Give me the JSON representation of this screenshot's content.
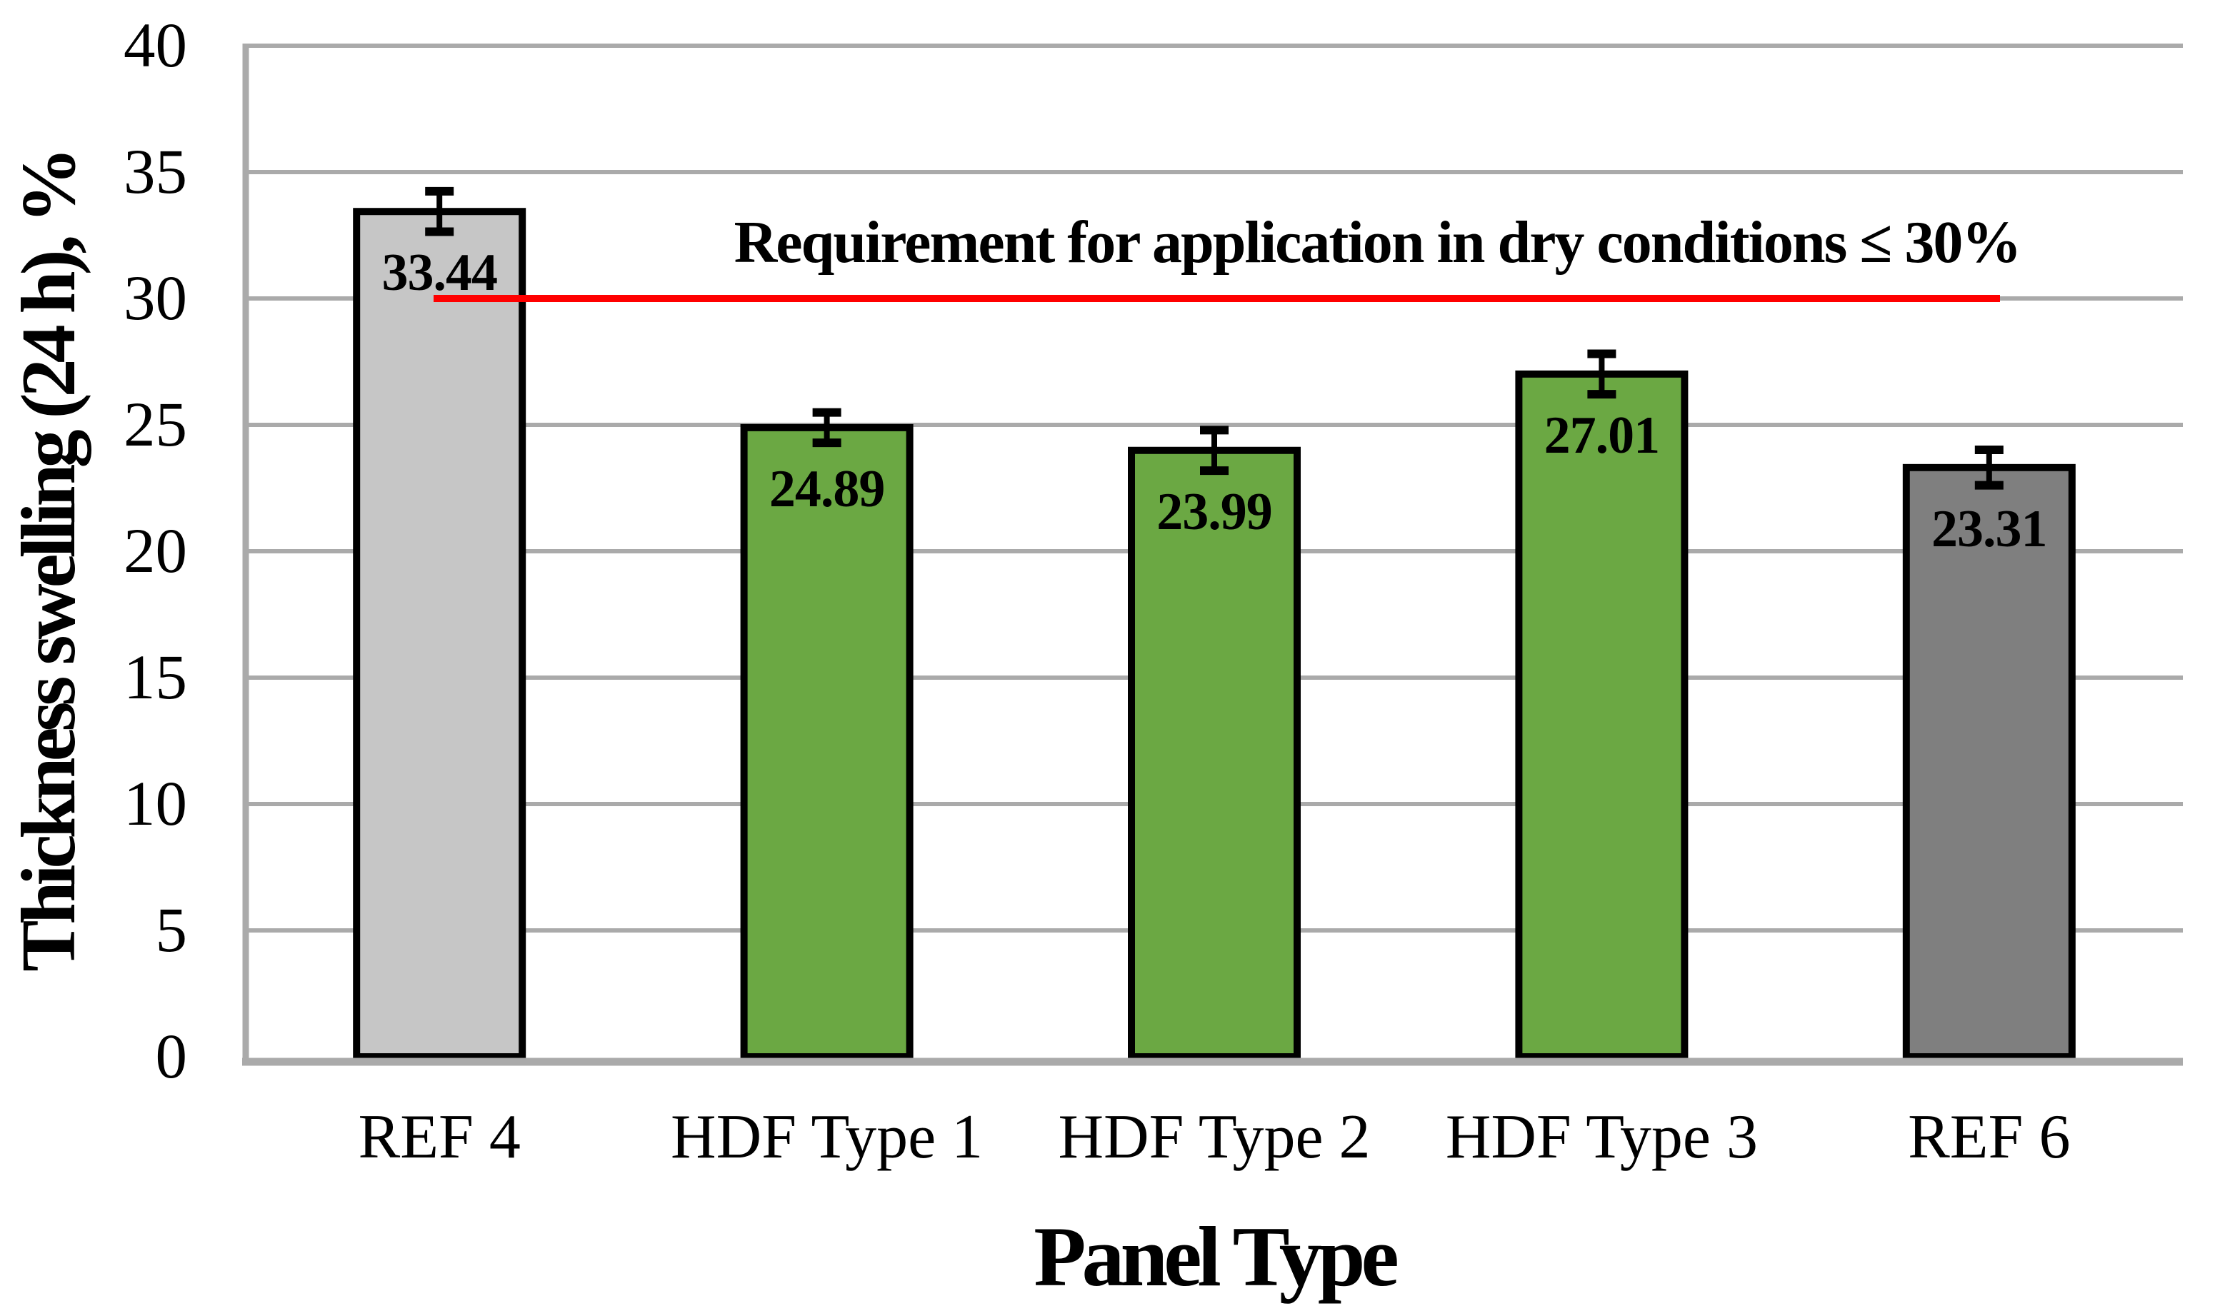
{
  "chart_data": {
    "type": "bar",
    "title": "",
    "xlabel": "Panel Type",
    "ylabel": "Thickness swelling (24 h), %",
    "categories": [
      "REF 4",
      "HDF Type 1",
      "HDF Type 2",
      "HDF Type 3",
      "REF 6"
    ],
    "values": [
      33.44,
      24.89,
      23.99,
      27.01,
      23.31
    ],
    "value_labels": [
      "33.44",
      "24.89",
      "23.99",
      "27.01",
      "23.31"
    ],
    "error_bars": [
      0.8,
      0.6,
      0.8,
      0.8,
      0.7
    ],
    "bar_colors": [
      "#C6C6C6",
      "#6BA843",
      "#6BA843",
      "#6BA843",
      "#7F7F7F"
    ],
    "ylim": [
      0,
      40
    ],
    "yticks": [
      0,
      5,
      10,
      15,
      20,
      25,
      30,
      35,
      40
    ],
    "grid": true,
    "legend_position": "none",
    "annotation": {
      "text": "Requirement for application in dry conditions ≤ 30%",
      "line_value": 30,
      "line_color": "#FF0000"
    },
    "style": {
      "grid_color": "#AAAAAA",
      "axis_color": "#AAAAAA",
      "bar_border_color": "#000000",
      "error_bar_color": "#000000",
      "label_color": "#000000",
      "background_color": "#FFFFFF"
    }
  }
}
